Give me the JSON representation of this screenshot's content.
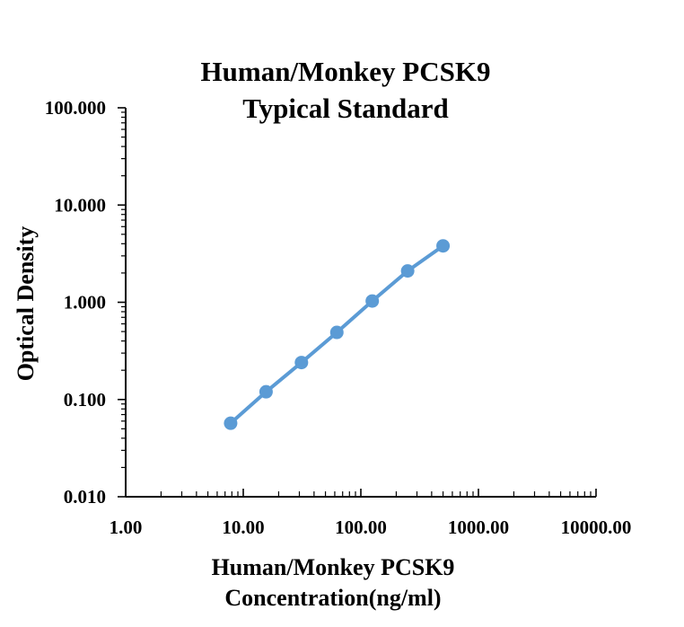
{
  "chart_data": {
    "type": "line",
    "title": [
      "Human/Monkey PCSK9",
      "Typical Standard"
    ],
    "xlabel": [
      "Human/Monkey PCSK9",
      "Concentration(ng/ml)"
    ],
    "ylabel": "Optical Density",
    "xscale": "log",
    "yscale": "log",
    "xlim": [
      1,
      10000
    ],
    "ylim": [
      0.01,
      100
    ],
    "xticks": [
      "1.00",
      "10.00",
      "100.00",
      "1000.00",
      "10000.00"
    ],
    "yticks": [
      "0.010",
      "0.100",
      "1.000",
      "10.000",
      "100.000"
    ],
    "grid": false,
    "legend": "none",
    "series": [
      {
        "color": "#5b9bd5",
        "x": [
          7.81,
          15.63,
          31.25,
          62.5,
          125,
          250,
          500
        ],
        "y": [
          0.057,
          0.12,
          0.24,
          0.49,
          1.03,
          2.1,
          3.8
        ]
      }
    ]
  }
}
